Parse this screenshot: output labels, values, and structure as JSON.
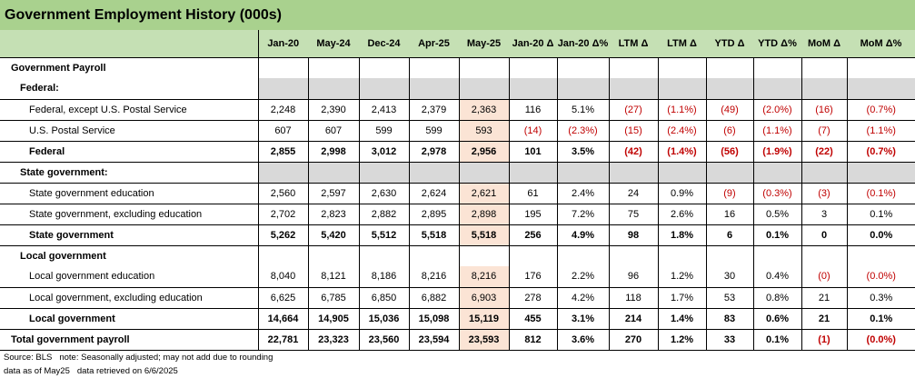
{
  "title": "Government Employment History (000s)",
  "accent_colors": {
    "title_bg": "#a9d18e",
    "header_bg": "#c5e0b4",
    "highlight": "#fbe4d5",
    "negative": "#c00000",
    "shaded": "#d9d9d9"
  },
  "columns": [
    "Jan-20",
    "May-24",
    "Dec-24",
    "Apr-25",
    "May-25",
    "Jan-20 Δ",
    "Jan-20 Δ%",
    "LTM Δ",
    "LTM Δ",
    "YTD Δ",
    "YTD Δ%",
    "MoM Δ",
    "MoM Δ%"
  ],
  "rows": [
    {
      "label": "Government Payroll",
      "type": "section",
      "level": "lv0",
      "values": []
    },
    {
      "label": "Federal:",
      "type": "header",
      "level": "lv1",
      "values": []
    },
    {
      "label": "Federal, except U.S. Postal Service",
      "type": "data",
      "level": "lv2",
      "values": [
        "2,248",
        "2,390",
        "2,413",
        "2,379",
        "2,363",
        "116",
        "5.1%",
        "(27)",
        "(1.1%)",
        "(49)",
        "(2.0%)",
        "(16)",
        "(0.7%)"
      ]
    },
    {
      "label": "U.S. Postal Service",
      "type": "data",
      "level": "lv2",
      "values": [
        "607",
        "607",
        "599",
        "599",
        "593",
        "(14)",
        "(2.3%)",
        "(15)",
        "(2.4%)",
        "(6)",
        "(1.1%)",
        "(7)",
        "(1.1%)"
      ]
    },
    {
      "label": "Federal",
      "type": "bold",
      "level": "lv1b",
      "values": [
        "2,855",
        "2,998",
        "3,012",
        "2,978",
        "2,956",
        "101",
        "3.5%",
        "(42)",
        "(1.4%)",
        "(56)",
        "(1.9%)",
        "(22)",
        "(0.7%)"
      ]
    },
    {
      "label": "State government:",
      "type": "header",
      "level": "lv1",
      "values": []
    },
    {
      "label": "State government education",
      "type": "data",
      "level": "lv2",
      "values": [
        "2,560",
        "2,597",
        "2,630",
        "2,624",
        "2,621",
        "61",
        "2.4%",
        "24",
        "0.9%",
        "(9)",
        "(0.3%)",
        "(3)",
        "(0.1%)"
      ]
    },
    {
      "label": "State government, excluding education",
      "type": "data",
      "level": "lv2",
      "values": [
        "2,702",
        "2,823",
        "2,882",
        "2,895",
        "2,898",
        "195",
        "7.2%",
        "75",
        "2.6%",
        "16",
        "0.5%",
        "3",
        "0.1%"
      ]
    },
    {
      "label": "State government",
      "type": "bold",
      "level": "lv1b",
      "values": [
        "5,262",
        "5,420",
        "5,512",
        "5,518",
        "5,518",
        "256",
        "4.9%",
        "98",
        "1.8%",
        "6",
        "0.1%",
        "0",
        "0.0%"
      ]
    },
    {
      "label": "Local government",
      "type": "section",
      "level": "lv1",
      "values": []
    },
    {
      "label": "Local government education",
      "type": "data",
      "level": "lv2",
      "values": [
        "8,040",
        "8,121",
        "8,186",
        "8,216",
        "8,216",
        "176",
        "2.2%",
        "96",
        "1.2%",
        "30",
        "0.4%",
        "(0)",
        "(0.0%)"
      ]
    },
    {
      "label": "Local government, excluding education",
      "type": "data",
      "level": "lv2",
      "values": [
        "6,625",
        "6,785",
        "6,850",
        "6,882",
        "6,903",
        "278",
        "4.2%",
        "118",
        "1.7%",
        "53",
        "0.8%",
        "21",
        "0.3%"
      ]
    },
    {
      "label": "Local government",
      "type": "bold",
      "level": "lv1b",
      "values": [
        "14,664",
        "14,905",
        "15,036",
        "15,098",
        "15,119",
        "455",
        "3.1%",
        "214",
        "1.4%",
        "83",
        "0.6%",
        "21",
        "0.1%"
      ]
    },
    {
      "label": "Total government payroll",
      "type": "bold",
      "level": "lv0",
      "values": [
        "22,781",
        "23,323",
        "23,560",
        "23,594",
        "23,593",
        "812",
        "3.6%",
        "270",
        "1.2%",
        "33",
        "0.1%",
        "(1)",
        "(0.0%)"
      ]
    }
  ],
  "footer": {
    "line1_source": "Source: BLS",
    "line1_note": "note: Seasonally adjusted; may not add due to rounding",
    "line2_asof": "data as of May25",
    "line2_retrieved": "data retrieved on 6/6/2025"
  }
}
